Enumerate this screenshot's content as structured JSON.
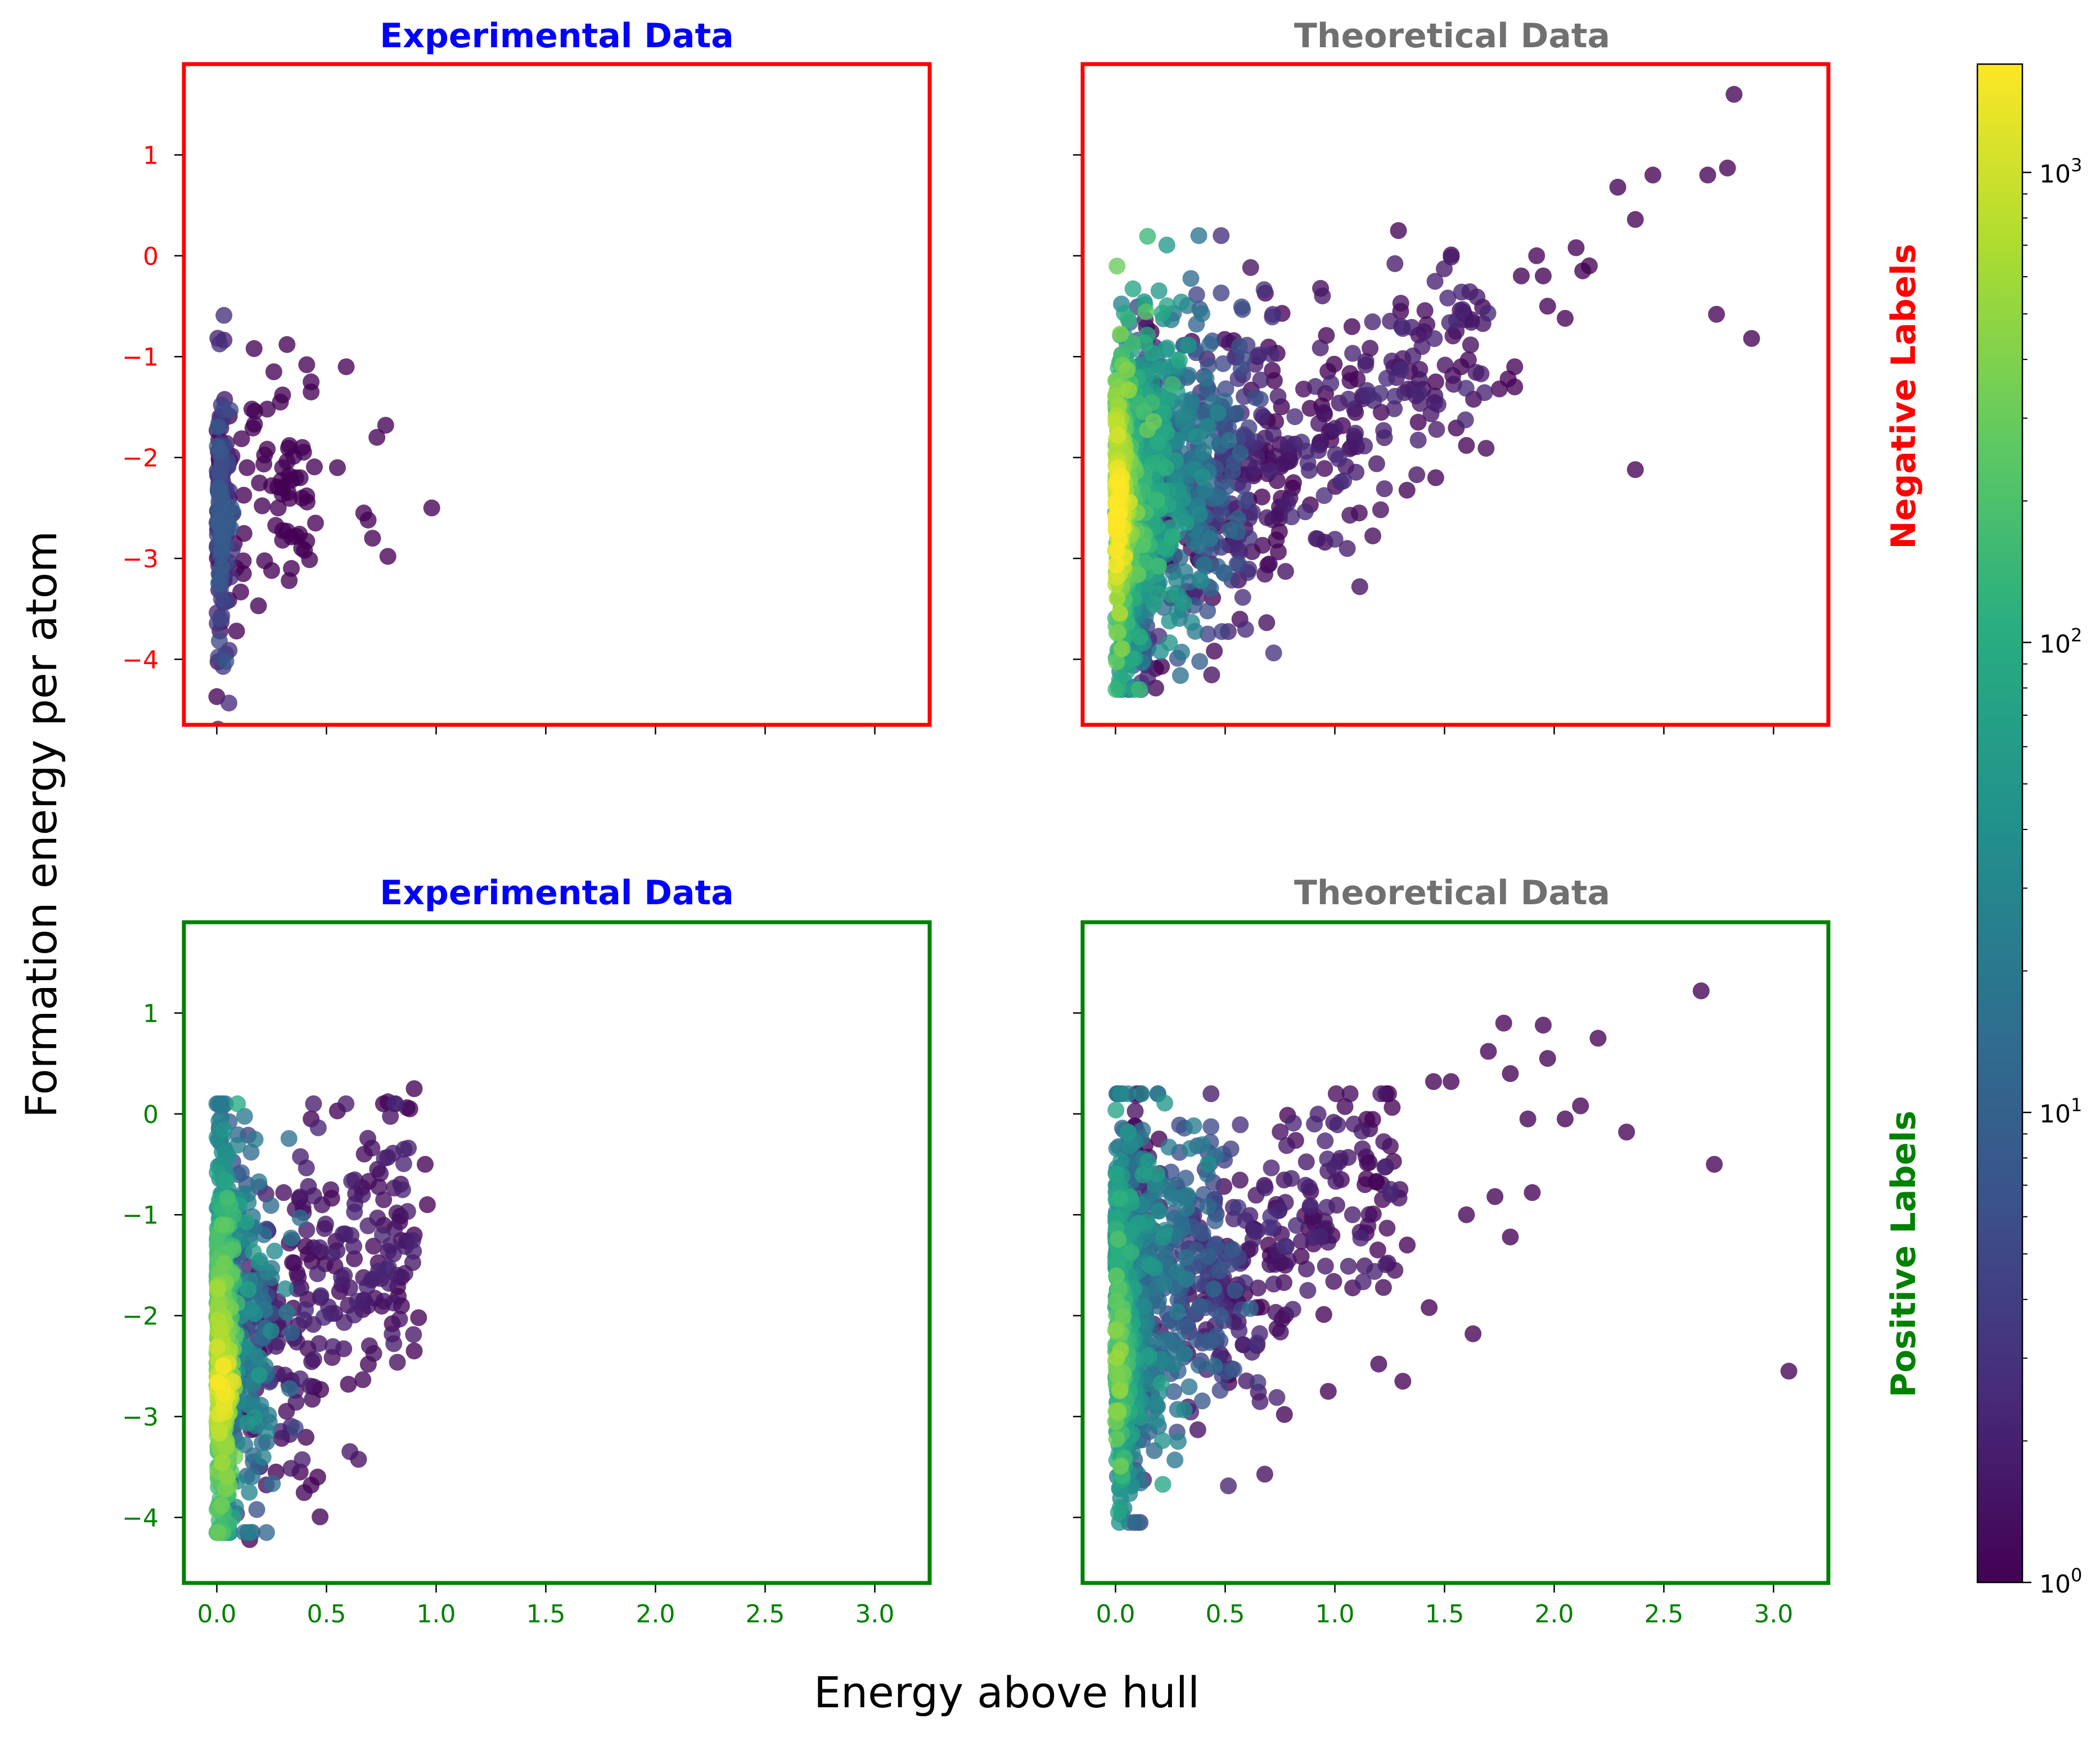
{
  "figure": {
    "ylabel": "Formation energy per atom",
    "xlabel": "Energy above hull"
  },
  "row_labels": [
    {
      "text": "Negative Labels",
      "color": "#ff0000"
    },
    {
      "text": "Positive Labels",
      "color": "#008000"
    }
  ],
  "colorbar": {
    "colormap": "viridis",
    "scale": "log",
    "range": [
      1,
      1700
    ],
    "ticks": [
      {
        "value": 1,
        "label": "10",
        "exp": "0"
      },
      {
        "value": 10,
        "label": "10",
        "exp": "1"
      },
      {
        "value": 100,
        "label": "10",
        "exp": "2"
      },
      {
        "value": 1000,
        "label": "10",
        "exp": "3"
      }
    ]
  },
  "chart_data": [
    {
      "type": "scatter",
      "title": "Experimental Data",
      "title_color": "#0000ff",
      "frame_color": "#ff0000",
      "row": "Negative Labels",
      "xlim": [
        -0.15,
        3.25
      ],
      "ylim": [
        -4.65,
        1.9
      ],
      "xticks": [
        0.0,
        0.5,
        1.0,
        1.5,
        2.0,
        2.5,
        3.0
      ],
      "yticks": [
        1,
        0,
        -1,
        -2,
        -3,
        -4
      ],
      "show_xticklabels": false,
      "show_yticklabels": true,
      "summary": {
        "count": 260,
        "x_range": [
          0.0,
          0.98
        ],
        "y_range": [
          -4.37,
          -0.88
        ]
      },
      "points": [
        [
          0.17,
          -0.92
        ],
        [
          0.32,
          -0.88
        ],
        [
          0.26,
          -1.15
        ],
        [
          0.41,
          -1.08
        ],
        [
          0.59,
          -1.1
        ],
        [
          0.43,
          -1.25
        ],
        [
          0.43,
          -1.35
        ],
        [
          0.3,
          -1.38
        ],
        [
          0.29,
          -1.45
        ],
        [
          0.23,
          -1.52
        ],
        [
          0.16,
          -1.52
        ],
        [
          0.77,
          -1.68
        ],
        [
          0.73,
          -1.8
        ],
        [
          0.39,
          -1.9
        ],
        [
          0.55,
          -2.1
        ],
        [
          0.3,
          -2.1
        ],
        [
          0.33,
          -2.18
        ],
        [
          0.38,
          -2.2
        ],
        [
          0.25,
          -2.28
        ],
        [
          0.3,
          -2.3
        ],
        [
          0.41,
          -2.38
        ],
        [
          0.98,
          -2.5
        ],
        [
          0.28,
          -2.5
        ],
        [
          0.67,
          -2.55
        ],
        [
          0.69,
          -2.62
        ],
        [
          0.45,
          -2.65
        ],
        [
          0.32,
          -2.73
        ],
        [
          0.71,
          -2.8
        ],
        [
          0.3,
          -2.82
        ],
        [
          0.4,
          -2.92
        ],
        [
          0.78,
          -2.98
        ],
        [
          0.34,
          -3.1
        ],
        [
          0.25,
          -3.12
        ],
        [
          0.33,
          -3.22
        ],
        [
          0.19,
          -3.47
        ],
        [
          0.0,
          -4.37
        ],
        [
          0.09,
          -3.72
        ]
      ]
    },
    {
      "type": "scatter",
      "title": "Theoretical Data",
      "title_color": "#707070",
      "frame_color": "#ff0000",
      "row": "Negative Labels",
      "xlim": [
        -0.15,
        3.25
      ],
      "ylim": [
        -4.65,
        1.9
      ],
      "xticks": [
        0.0,
        0.5,
        1.0,
        1.5,
        2.0,
        2.5,
        3.0
      ],
      "yticks": [
        1,
        0,
        -1,
        -2,
        -3,
        -4
      ],
      "show_xticklabels": false,
      "show_yticklabels": false,
      "summary": {
        "count": 6000,
        "x_range": [
          0.0,
          2.9
        ],
        "y_range": [
          -4.3,
          1.6
        ]
      },
      "points": [
        [
          2.82,
          1.6
        ],
        [
          2.79,
          0.87
        ],
        [
          2.7,
          0.8
        ],
        [
          2.45,
          0.8
        ],
        [
          2.29,
          0.68
        ],
        [
          2.37,
          0.36
        ],
        [
          2.1,
          0.08
        ],
        [
          2.16,
          -0.1
        ],
        [
          2.13,
          -0.15
        ],
        [
          1.95,
          -0.2
        ],
        [
          1.85,
          -0.2
        ],
        [
          1.92,
          0.0
        ],
        [
          1.97,
          -0.5
        ],
        [
          2.05,
          -0.62
        ],
        [
          2.74,
          -0.58
        ],
        [
          2.9,
          -0.82
        ],
        [
          1.82,
          -1.1
        ],
        [
          1.79,
          -1.22
        ],
        [
          1.82,
          -1.3
        ],
        [
          1.75,
          -1.32
        ],
        [
          2.37,
          -2.12
        ],
        [
          1.6,
          -1.88
        ],
        [
          1.46,
          -2.2
        ],
        [
          1.3,
          -0.55
        ],
        [
          1.29,
          0.25
        ],
        [
          1.46,
          -1.25
        ],
        [
          1.38,
          -1.65
        ]
      ]
    },
    {
      "type": "scatter",
      "title": "Experimental Data",
      "title_color": "#0000ff",
      "frame_color": "#008000",
      "row": "Positive Labels",
      "xlim": [
        -0.15,
        3.25
      ],
      "ylim": [
        -4.65,
        1.9
      ],
      "xticks": [
        0.0,
        0.5,
        1.0,
        1.5,
        2.0,
        2.5,
        3.0
      ],
      "yticks": [
        1,
        0,
        -1,
        -2,
        -3,
        -4
      ],
      "show_xticklabels": true,
      "show_yticklabels": true,
      "summary": {
        "count": 1200,
        "x_range": [
          0.0,
          0.98
        ],
        "y_range": [
          -4.22,
          0.25
        ]
      },
      "points": [
        [
          0.9,
          0.25
        ],
        [
          0.95,
          -0.5
        ],
        [
          0.88,
          0.05
        ],
        [
          0.78,
          0.12
        ],
        [
          0.76,
          0.1
        ],
        [
          0.55,
          0.03
        ],
        [
          0.43,
          -0.05
        ],
        [
          0.96,
          -0.9
        ],
        [
          0.9,
          -1.2
        ],
        [
          0.92,
          -2.02
        ],
        [
          0.9,
          -2.35
        ],
        [
          0.8,
          -2.08
        ],
        [
          0.6,
          -2.68
        ],
        [
          0.46,
          -3.6
        ],
        [
          0.38,
          -3.55
        ],
        [
          0.15,
          -4.22
        ],
        [
          0.27,
          -3.55
        ],
        [
          0.43,
          -3.68
        ]
      ]
    },
    {
      "type": "scatter",
      "title": "Theoretical Data",
      "title_color": "#707070",
      "frame_color": "#008000",
      "row": "Positive Labels",
      "xlim": [
        -0.15,
        3.25
      ],
      "ylim": [
        -4.65,
        1.9
      ],
      "xticks": [
        0.0,
        0.5,
        1.0,
        1.5,
        2.0,
        2.5,
        3.0
      ],
      "yticks": [
        1,
        0,
        -1,
        -2,
        -3,
        -4
      ],
      "show_xticklabels": true,
      "show_yticklabels": false,
      "summary": {
        "count": 4000,
        "x_range": [
          0.0,
          3.07
        ],
        "y_range": [
          -4.05,
          1.22
        ]
      },
      "points": [
        [
          2.67,
          1.22
        ],
        [
          1.77,
          0.9
        ],
        [
          1.95,
          0.88
        ],
        [
          2.2,
          0.75
        ],
        [
          1.7,
          0.62
        ],
        [
          1.97,
          0.55
        ],
        [
          1.8,
          0.4
        ],
        [
          1.53,
          0.32
        ],
        [
          1.45,
          0.32
        ],
        [
          1.88,
          -0.05
        ],
        [
          2.05,
          -0.05
        ],
        [
          2.12,
          0.08
        ],
        [
          2.33,
          -0.18
        ],
        [
          2.73,
          -0.5
        ],
        [
          1.9,
          -0.78
        ],
        [
          1.73,
          -0.82
        ],
        [
          1.6,
          -1.0
        ],
        [
          1.8,
          -1.22
        ],
        [
          3.07,
          -2.55
        ],
        [
          1.63,
          -2.18
        ],
        [
          1.43,
          -1.92
        ],
        [
          1.31,
          -2.65
        ],
        [
          1.2,
          -2.48
        ],
        [
          0.97,
          -2.75
        ],
        [
          0.77,
          -2.98
        ],
        [
          1.33,
          -1.3
        ]
      ]
    }
  ]
}
